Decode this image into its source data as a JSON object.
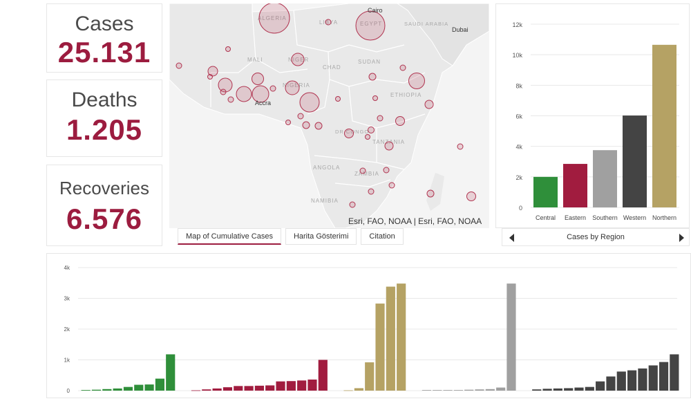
{
  "stats": {
    "cases": {
      "label": "Cases",
      "value": "25.131"
    },
    "deaths": {
      "label": "Deaths",
      "value": "1.205"
    },
    "recoveries": {
      "label": "Recoveries",
      "value": "6.576"
    }
  },
  "map": {
    "country_labels": [
      "ALGERIA",
      "LIBYA",
      "EGYPT",
      "SAUDI ARABIA",
      "MALI",
      "NIGER",
      "CHAD",
      "SUDAN",
      "NIGERIA",
      "ETHIOPIA",
      "DR CONGO",
      "TANZANIA",
      "ANGOLA",
      "ZAMBIA",
      "NAMIBIA"
    ],
    "city_labels": [
      "Cairo",
      "Dubai",
      "Accra"
    ],
    "attribution": "Esri, FAO, NOAA | Esri, FAO, NOAA",
    "marker_color": "#b0334f"
  },
  "tabs": [
    {
      "label": "Map of Cumulative Cases",
      "active": true
    },
    {
      "label": "Harita Gösterimi",
      "active": false
    },
    {
      "label": "Citation",
      "active": false
    }
  ],
  "region_chart_title": "Cases by Region",
  "colors": {
    "central": "#2f8f3a",
    "eastern": "#a11c3f",
    "southern": "#a0a0a0",
    "western": "#444444",
    "northern": "#b5a264",
    "accent": "#9c1c3f"
  },
  "chart_data": [
    {
      "type": "bar",
      "title": "Cases by Region",
      "categories": [
        "Central",
        "Eastern",
        "Southern",
        "Western",
        "Northern"
      ],
      "values": [
        2000,
        2850,
        3750,
        6020,
        10650
      ],
      "colors": [
        "#2f8f3a",
        "#a11c3f",
        "#a0a0a0",
        "#444444",
        "#b5a264"
      ],
      "y_ticks": [
        "0",
        "2k",
        "4k",
        "6k",
        "8k",
        "10k",
        "12k"
      ],
      "ylim": [
        0,
        12000
      ],
      "grid": true
    },
    {
      "type": "bar",
      "y_ticks": [
        "0",
        "1k",
        "2k",
        "3k",
        "4k"
      ],
      "ylim": [
        0,
        4000
      ],
      "grid": true,
      "series": [
        {
          "values": [
            20,
            30,
            50,
            70,
            120,
            190,
            200,
            390,
            1180
          ],
          "color": "#2f8f3a"
        },
        {
          "values": [
            10,
            40,
            70,
            110,
            150,
            150,
            160,
            170,
            300,
            310,
            330,
            360,
            1000
          ],
          "color": "#a11c3f"
        },
        {
          "values": [
            10,
            80,
            920,
            2830,
            3380,
            3480
          ],
          "color": "#b5a264"
        },
        {
          "values": [
            20,
            20,
            20,
            20,
            30,
            40,
            50,
            100,
            3480
          ],
          "color": "#a0a0a0"
        },
        {
          "values": [
            40,
            60,
            70,
            80,
            100,
            120,
            300,
            460,
            620,
            660,
            720,
            820,
            930,
            1180
          ],
          "color": "#444444"
        }
      ]
    }
  ]
}
